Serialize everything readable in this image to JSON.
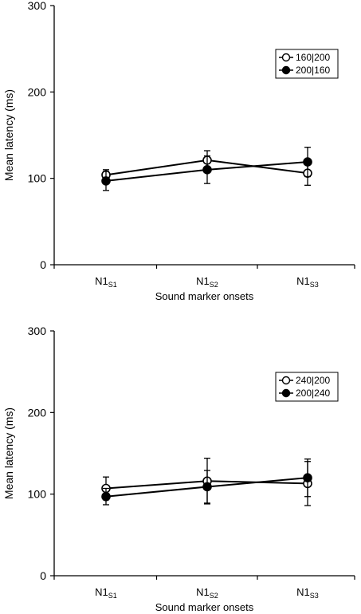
{
  "chart_data": [
    {
      "type": "line",
      "categories": [
        {
          "base": "N1",
          "sub": "S1"
        },
        {
          "base": "N1",
          "sub": "S2"
        },
        {
          "base": "N1",
          "sub": "S3"
        }
      ],
      "xlabel": "Sound marker onsets",
      "ylabel": "Mean latency (ms)",
      "ylim": [
        0,
        300
      ],
      "yticks": [
        "0",
        "100",
        "200",
        "300"
      ],
      "legend_position": "top-right",
      "series": [
        {
          "name": "160|200",
          "marker": "open-circle",
          "values": [
            104,
            121,
            106
          ],
          "errors": [
            6,
            11,
            14
          ]
        },
        {
          "name": "200|160",
          "marker": "filled-circle",
          "values": [
            97,
            110,
            119
          ],
          "errors": [
            11,
            16,
            17
          ]
        }
      ]
    },
    {
      "type": "line",
      "categories": [
        {
          "base": "N1",
          "sub": "S1"
        },
        {
          "base": "N1",
          "sub": "S2"
        },
        {
          "base": "N1",
          "sub": "S3"
        }
      ],
      "xlabel": "Sound marker onsets",
      "ylabel": "Mean latency (ms)",
      "ylim": [
        0,
        300
      ],
      "yticks": [
        "0",
        "100",
        "200",
        "300"
      ],
      "legend_position": "top-right",
      "series": [
        {
          "name": "240|200",
          "marker": "open-circle",
          "values": [
            107,
            116,
            113
          ],
          "errors": [
            14,
            28,
            27
          ]
        },
        {
          "name": "200|240",
          "marker": "filled-circle",
          "values": [
            97,
            109,
            120
          ],
          "errors": [
            10,
            20,
            23
          ]
        }
      ]
    }
  ]
}
